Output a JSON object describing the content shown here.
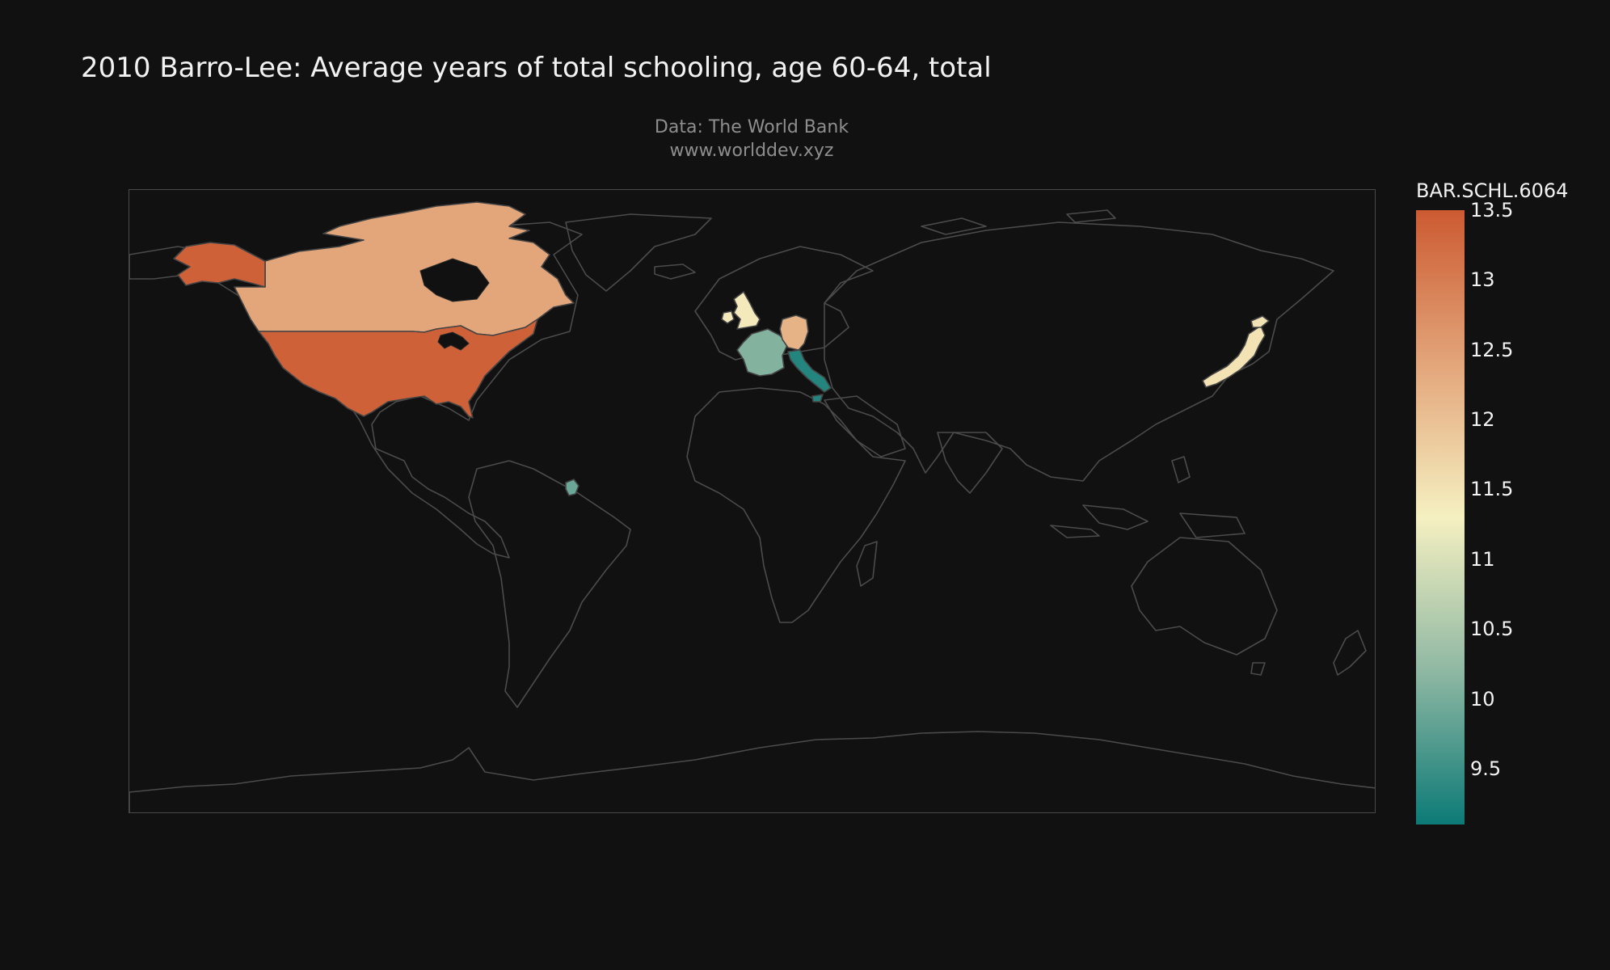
{
  "title": "2010 Barro-Lee: Average years of total schooling, age 60-64, total",
  "subtitle_lines": [
    "Data: The World Bank",
    "www.worlddev.xyz"
  ],
  "map": {
    "projection": "equirectangular",
    "land_stroke": "#4b4b4b",
    "background": "#111111",
    "countries": [
      {
        "name": "United States",
        "value": 13.4
      },
      {
        "name": "Canada",
        "value": 12.4
      },
      {
        "name": "United Kingdom",
        "value": 11.4
      },
      {
        "name": "Germany",
        "value": 12.2
      },
      {
        "name": "France",
        "value": 10.1
      },
      {
        "name": "Italy",
        "value": 9.3
      },
      {
        "name": "Japan",
        "value": 11.5
      },
      {
        "name": "Guyana",
        "value": 9.9
      }
    ]
  },
  "colorbar": {
    "title": "BAR.SCHL.6064",
    "min": 9.1,
    "max": 13.5,
    "ticks": [
      "13.5",
      "13",
      "12.5",
      "12",
      "11.5",
      "11",
      "10.5",
      "10",
      "9.5"
    ],
    "tick_values": [
      13.5,
      13,
      12.5,
      12,
      11.5,
      11,
      10.5,
      10,
      9.5
    ],
    "colors": [
      "#cc5a31",
      "#e3a57a",
      "#f5f0c1",
      "#8fb8a3",
      "#0c7a76"
    ]
  }
}
